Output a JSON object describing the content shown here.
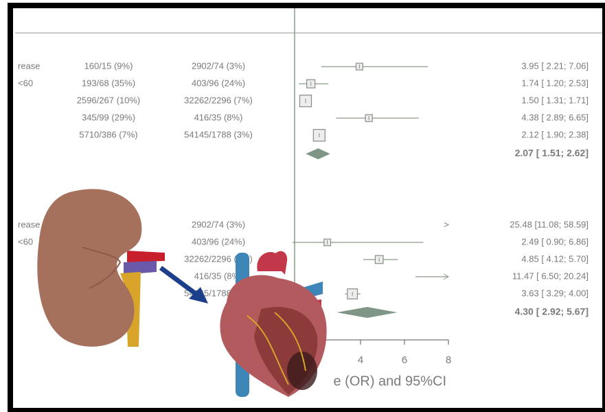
{
  "chart_data": {
    "type": "forest",
    "xlim": [
      0,
      8
    ],
    "xticks": [
      4,
      6,
      8
    ],
    "reference": 1,
    "axis_label": "e (OR) and 95%CI",
    "groups": [
      {
        "rows": [
          {
            "label": "rease",
            "events1": "160/15 (9%)",
            "events2": "2902/74 (3%)",
            "or": 3.95,
            "lo": 2.21,
            "hi": 7.06,
            "ci_label": "3.95 [ 2.21;  7.06]"
          },
          {
            "label": "<60",
            "events1": "193/68 (35%)",
            "events2": "403/96 (24%)",
            "or": 1.74,
            "lo": 1.2,
            "hi": 2.53,
            "ci_label": "1.74 [ 1.20;  2.53]"
          },
          {
            "events1": "2596/267 (10%)",
            "events2": "32262/2296 (7%)",
            "or": 1.5,
            "lo": 1.31,
            "hi": 1.71,
            "ci_label": "1.50 [ 1.31;  1.71]"
          },
          {
            "events1": "345/99 (29%)",
            "events2": "416/35 (8%)",
            "or": 4.38,
            "lo": 2.89,
            "hi": 6.65,
            "ci_label": "4.38 [ 2.89;  6.65]"
          },
          {
            "events1": "5710/386 (7%)",
            "events2": "54145/1788 (3%)",
            "or": 2.12,
            "lo": 1.9,
            "hi": 2.38,
            "ci_label": "2.12 [ 1.90;  2.38]"
          }
        ],
        "summary": {
          "or": 2.07,
          "lo": 1.51,
          "hi": 2.62,
          "ci_label": "2.07 [ 1.51;  2.62]"
        }
      },
      {
        "rows": [
          {
            "label": "rease",
            "events2": "2902/74 (3%)",
            "or": 25.48,
            "lo": 11.08,
            "hi": 58.59,
            "ci_label": "25.48 [11.08; 58.59]"
          },
          {
            "label": "<60",
            "events2": "403/96 (24%)",
            "or": 2.49,
            "lo": 0.9,
            "hi": 6.86,
            "ci_label": "2.49 [ 0.90;  6.86]"
          },
          {
            "events2": "32262/2296 (7%)",
            "or": 4.85,
            "lo": 4.12,
            "hi": 5.7,
            "ci_label": "4.85 [ 4.12;  5.70]"
          },
          {
            "events2": "416/35 (8%)",
            "or": 11.47,
            "lo": 6.5,
            "hi": 20.24,
            "ci_label": "11.47 [ 6.50; 20.24]"
          },
          {
            "events2": "54145/1788 (3%)",
            "or": 3.63,
            "lo": 3.29,
            "hi": 4.0,
            "ci_label": "3.63 [ 3.29;  4.00]"
          }
        ],
        "summary": {
          "or": 4.3,
          "lo": 2.92,
          "hi": 5.67,
          "ci_label": "4.30 [ 2.92;  5.67]"
        }
      }
    ]
  }
}
